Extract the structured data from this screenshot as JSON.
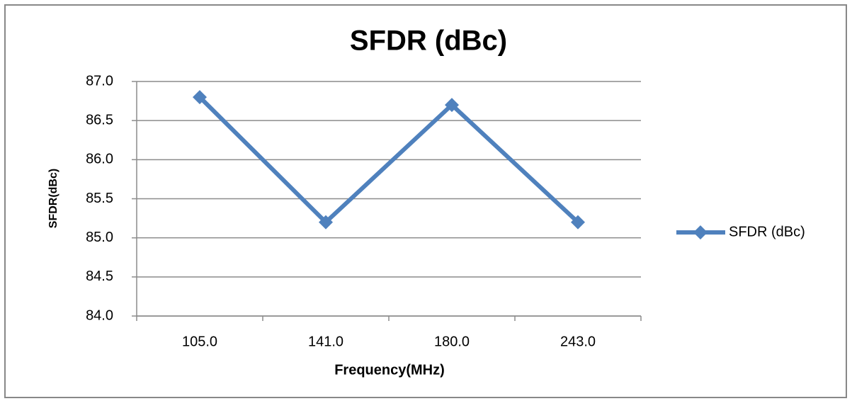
{
  "chart_data": {
    "type": "line",
    "title": "SFDR (dBc)",
    "x_label": "Frequency(MHz)",
    "y_label": "SFDR(dBc)",
    "categories": [
      "105.0",
      "141.0",
      "180.0",
      "243.0"
    ],
    "series": [
      {
        "name": "SFDR (dBc)",
        "color": "#4f81bd",
        "values": [
          86.8,
          85.2,
          86.7,
          85.2
        ]
      }
    ],
    "ylim": [
      84,
      87
    ],
    "yticks": [
      {
        "value": 84,
        "label": "84.0"
      },
      {
        "value": 84.5,
        "label": "84.5"
      },
      {
        "value": 85,
        "label": "85.0"
      },
      {
        "value": 85.5,
        "label": "85.5"
      },
      {
        "value": 86,
        "label": "86.0"
      },
      {
        "value": 86.5,
        "label": "86.5"
      },
      {
        "value": 87,
        "label": "87.0"
      }
    ],
    "grid": true,
    "legend": "right"
  }
}
